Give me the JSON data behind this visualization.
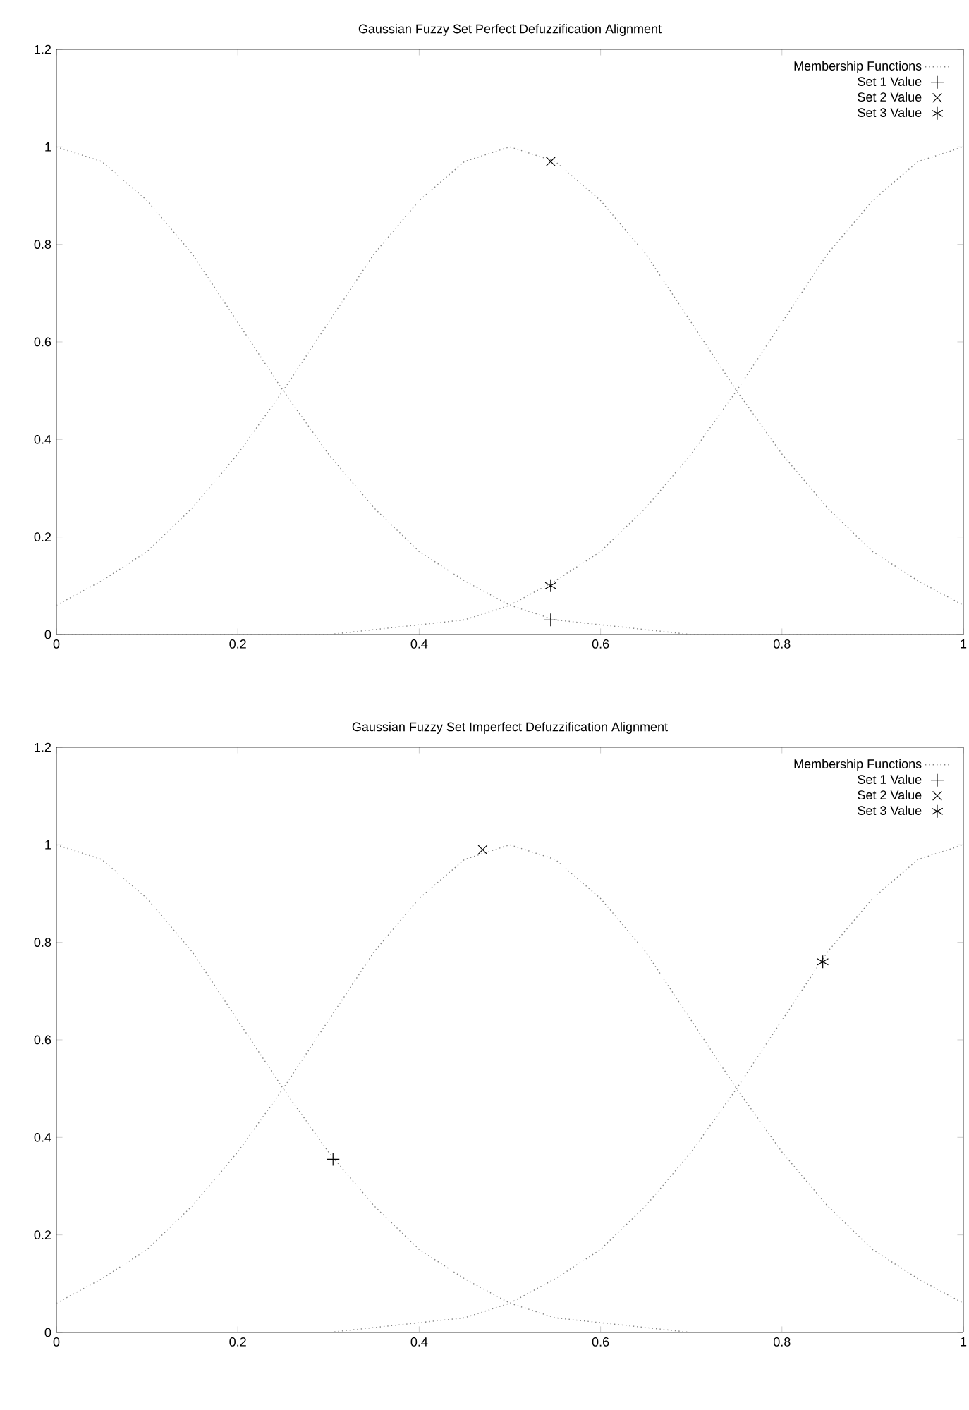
{
  "chart_data": [
    {
      "type": "line",
      "title": "Gaussian Fuzzy Set Perfect Defuzzification Alignment",
      "xlim": [
        0,
        1
      ],
      "ylim": [
        0,
        1.2
      ],
      "xticks": [
        0,
        0.2,
        0.4,
        0.6,
        0.8,
        1
      ],
      "yticks": [
        0,
        0.2,
        0.4,
        0.6,
        0.8,
        1,
        1.2
      ],
      "legend": "top right",
      "series": [
        {
          "name": "Membership Functions",
          "type": "line",
          "color": "#808080",
          "line_style": "dotted",
          "marker": "none",
          "x": [
            0,
            0.05,
            0.1,
            0.15,
            0.2,
            0.25,
            0.3,
            0.35,
            0.4,
            0.45,
            0.5,
            0.55,
            0.6,
            0.65,
            0.7,
            0.75,
            0.8,
            0.85,
            0.9,
            0.95,
            1
          ],
          "values": [
            1,
            0.97,
            0.89,
            0.78,
            0.64,
            0.5,
            0.37,
            0.26,
            0.17,
            0.11,
            0.06,
            0.03,
            0.02,
            0.01,
            0,
            0,
            0,
            0,
            0,
            0,
            0
          ]
        },
        {
          "type": "line",
          "color": "#808080",
          "line_style": "dotted",
          "marker": "none",
          "x": [
            0,
            0.05,
            0.1,
            0.15,
            0.2,
            0.25,
            0.3,
            0.35,
            0.4,
            0.45,
            0.5,
            0.55,
            0.6,
            0.65,
            0.7,
            0.75,
            0.8,
            0.85,
            0.9,
            0.95,
            1
          ],
          "values": [
            0.06,
            0.11,
            0.17,
            0.26,
            0.37,
            0.5,
            0.64,
            0.78,
            0.89,
            0.97,
            1,
            0.97,
            0.89,
            0.78,
            0.64,
            0.5,
            0.37,
            0.26,
            0.17,
            0.11,
            0.06
          ]
        },
        {
          "type": "line",
          "color": "#808080",
          "line_style": "dotted",
          "marker": "none",
          "x": [
            0,
            0.05,
            0.1,
            0.15,
            0.2,
            0.25,
            0.3,
            0.35,
            0.4,
            0.45,
            0.5,
            0.55,
            0.6,
            0.65,
            0.7,
            0.75,
            0.8,
            0.85,
            0.9,
            0.95,
            1
          ],
          "values": [
            0,
            0,
            0,
            0,
            0,
            0,
            0,
            0.01,
            0.02,
            0.03,
            0.06,
            0.11,
            0.17,
            0.26,
            0.37,
            0.5,
            0.64,
            0.78,
            0.89,
            0.97,
            1
          ]
        },
        {
          "name": "Set 1 Value",
          "type": "scatter",
          "color": "#000000",
          "marker": "plus",
          "x": [
            0.545
          ],
          "values": [
            0.03
          ]
        },
        {
          "name": "Set 2 Value",
          "type": "scatter",
          "color": "#000000",
          "marker": "cross",
          "x": [
            0.545
          ],
          "values": [
            0.97
          ]
        },
        {
          "name": "Set 3 Value",
          "type": "scatter",
          "color": "#000000",
          "x": [
            0.545
          ],
          "values": [
            0.1
          ]
        }
      ]
    },
    {
      "type": "line",
      "title": "Gaussian Fuzzy Set Imperfect Defuzzification Alignment",
      "xlim": [
        0,
        1
      ],
      "ylim": [
        0,
        1.2
      ],
      "xticks": [
        0,
        0.2,
        0.4,
        0.6,
        0.8,
        1
      ],
      "yticks": [
        0,
        0.2,
        0.4,
        0.6,
        0.8,
        1,
        1.2
      ],
      "legend": "top right",
      "series": [
        {
          "name": "Membership Functions",
          "type": "line",
          "color": "#808080",
          "line_style": "dotted",
          "marker": "none",
          "x": [
            0,
            0.05,
            0.1,
            0.15,
            0.2,
            0.25,
            0.3,
            0.35,
            0.4,
            0.45,
            0.5,
            0.55,
            0.6,
            0.65,
            0.7,
            0.75,
            0.8,
            0.85,
            0.9,
            0.95,
            1
          ],
          "values": [
            1,
            0.97,
            0.89,
            0.78,
            0.64,
            0.5,
            0.37,
            0.26,
            0.17,
            0.11,
            0.06,
            0.03,
            0.02,
            0.01,
            0,
            0,
            0,
            0,
            0,
            0,
            0
          ]
        },
        {
          "type": "line",
          "color": "#808080",
          "line_style": "dotted",
          "marker": "none",
          "x": [
            0,
            0.05,
            0.1,
            0.15,
            0.2,
            0.25,
            0.3,
            0.35,
            0.4,
            0.45,
            0.5,
            0.55,
            0.6,
            0.65,
            0.7,
            0.75,
            0.8,
            0.85,
            0.9,
            0.95,
            1
          ],
          "values": [
            0.06,
            0.11,
            0.17,
            0.26,
            0.37,
            0.5,
            0.64,
            0.78,
            0.89,
            0.97,
            1,
            0.97,
            0.89,
            0.78,
            0.64,
            0.5,
            0.37,
            0.26,
            0.17,
            0.11,
            0.06
          ]
        },
        {
          "type": "line",
          "color": "#808080",
          "line_style": "dotted",
          "marker": "none",
          "x": [
            0,
            0.05,
            0.1,
            0.15,
            0.2,
            0.25,
            0.3,
            0.35,
            0.4,
            0.45,
            0.5,
            0.55,
            0.6,
            0.65,
            0.7,
            0.75,
            0.8,
            0.85,
            0.9,
            0.95,
            1
          ],
          "values": [
            0,
            0,
            0,
            0,
            0,
            0,
            0,
            0.01,
            0.02,
            0.03,
            0.06,
            0.11,
            0.17,
            0.26,
            0.37,
            0.5,
            0.64,
            0.78,
            0.89,
            0.97,
            1
          ]
        },
        {
          "name": "Set 1 Value",
          "type": "scatter",
          "color": "#000000",
          "marker": "plus",
          "x": [
            0.305
          ],
          "values": [
            0.355
          ]
        },
        {
          "name": "Set 2 Value",
          "type": "scatter",
          "color": "#000000",
          "marker": "cross",
          "x": [
            0.47
          ],
          "values": [
            0.99
          ]
        },
        {
          "name": "Set 3 Value",
          "type": "scatter",
          "color": "#000000",
          "x": [
            0.845
          ],
          "values": [
            0.76
          ]
        }
      ]
    }
  ]
}
